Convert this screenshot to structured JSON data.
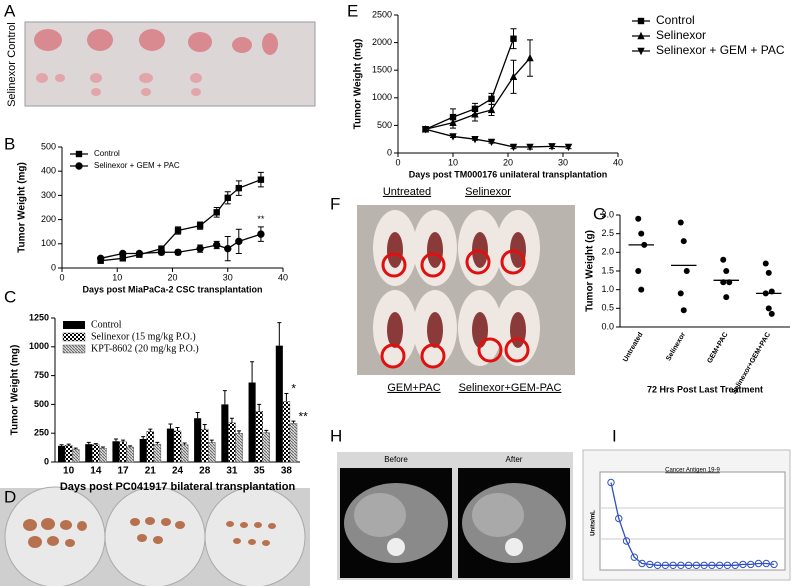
{
  "panel_letters": [
    "A",
    "B",
    "C",
    "D",
    "E",
    "F",
    "G",
    "H",
    "I"
  ],
  "photo_labels": {
    "A": [
      "Selinexor",
      "Control"
    ],
    "F": [
      "Untreated",
      "Selinexor",
      "GEM+PAC",
      "Selinexor+GEM-PAC"
    ],
    "H": [
      "Before",
      "After"
    ]
  },
  "chart_data": [
    {
      "type": "line",
      "xlabel": "Days post MiaPaCa-2 CSC transplantation",
      "ylabel": "Tumor Weight (mg)",
      "xlim": [
        0,
        40
      ],
      "xticks": [
        0,
        10,
        20,
        30,
        40
      ],
      "ylim": [
        0,
        500
      ],
      "yticks": [
        0,
        100,
        200,
        300,
        400,
        500
      ],
      "legend": "upper left",
      "series": [
        {
          "name": "Control",
          "color": "#000000",
          "marker": "square",
          "x": [
            7,
            11,
            14,
            18,
            21,
            25,
            28,
            30,
            32,
            36
          ],
          "values": [
            30,
            40,
            55,
            80,
            155,
            175,
            230,
            290,
            330,
            365
          ],
          "errors": [
            5,
            5,
            5,
            10,
            15,
            15,
            20,
            25,
            30,
            30
          ]
        },
        {
          "name": "Selinexor + GEM + PAC",
          "color": "#000000",
          "marker": "circle",
          "x": [
            7,
            11,
            14,
            18,
            21,
            25,
            28,
            30,
            32,
            36
          ],
          "values": [
            40,
            60,
            60,
            65,
            65,
            80,
            95,
            80,
            110,
            140
          ],
          "errors": [
            5,
            5,
            5,
            10,
            10,
            15,
            15,
            50,
            50,
            30
          ]
        }
      ],
      "annotations": [
        {
          "text": "**",
          "series": 1,
          "index": 9
        }
      ]
    },
    {
      "type": "bar",
      "xlabel": "Days post PC041917 bilateral transplantation",
      "ylabel": "Tumor Weight (mg)",
      "categories": [
        "10",
        "14",
        "17",
        "21",
        "24",
        "28",
        "31",
        "35",
        "38"
      ],
      "ylim": [
        0,
        1250
      ],
      "yticks": [
        0,
        250,
        500,
        750,
        1000,
        1250
      ],
      "legend": "upper left",
      "series": [
        {
          "name": "Control",
          "color": "#000000",
          "pattern": "solid",
          "values": [
            140,
            155,
            180,
            200,
            290,
            380,
            500,
            690,
            1010
          ],
          "errors": [
            10,
            15,
            20,
            20,
            40,
            50,
            120,
            180,
            200
          ]
        },
        {
          "name": "Selinexor (15 mg/kg P.O.)",
          "color": "#000000",
          "pattern": "checker",
          "values": [
            145,
            150,
            175,
            265,
            270,
            285,
            340,
            440,
            525
          ],
          "errors": [
            10,
            10,
            15,
            20,
            30,
            40,
            40,
            60,
            70
          ]
        },
        {
          "name": "KPT-8602 (20 mg/kg P.O.)",
          "color": "#777777",
          "pattern": "hatch",
          "values": [
            110,
            120,
            130,
            155,
            150,
            170,
            250,
            255,
            335
          ],
          "errors": [
            10,
            10,
            10,
            15,
            15,
            20,
            20,
            20,
            20
          ]
        }
      ],
      "annotations": [
        {
          "text": "*",
          "series": 1,
          "index": 8
        },
        {
          "text": "**",
          "series": 2,
          "index": 8
        }
      ]
    },
    {
      "type": "line",
      "xlabel": "Days post TM000176 unilateral transplantation",
      "ylabel": "Tumor Weight (mg)",
      "xlim": [
        0,
        40
      ],
      "xticks": [
        0,
        10,
        20,
        30,
        40
      ],
      "ylim": [
        0,
        2500
      ],
      "yticks": [
        0,
        500,
        1000,
        1500,
        2000,
        2500
      ],
      "legend": "right",
      "series": [
        {
          "name": "Control",
          "color": "#000000",
          "marker": "square",
          "x": [
            5,
            10,
            14,
            17,
            21
          ],
          "values": [
            430,
            650,
            800,
            980,
            2070
          ],
          "errors": [
            40,
            150,
            100,
            100,
            180
          ]
        },
        {
          "name": "Selinexor",
          "color": "#000000",
          "marker": "triangle-up",
          "x": [
            5,
            10,
            14,
            17,
            21,
            24
          ],
          "values": [
            430,
            550,
            700,
            780,
            1380,
            1720
          ],
          "errors": [
            40,
            100,
            120,
            100,
            300,
            330
          ]
        },
        {
          "name": "Selinexor + GEM + PAC",
          "color": "#000000",
          "marker": "triangle-down",
          "x": [
            5,
            10,
            14,
            17,
            21,
            24,
            28,
            31
          ],
          "values": [
            430,
            300,
            250,
            200,
            110,
            110,
            120,
            110
          ],
          "errors": [
            30,
            20,
            20,
            20,
            30,
            40,
            40,
            30
          ]
        }
      ]
    },
    {
      "type": "dotplot",
      "xlabel": "72 Hrs Post Last Treatment",
      "ylabel": "Tumor Weight (g)",
      "categories": [
        "Untreated",
        "Selinexor",
        "GEM+PAC",
        "Selinexor+GEM+PAC"
      ],
      "ylim": [
        0,
        3
      ],
      "yticks": [
        {
          "value": 0,
          "label": "0.0"
        },
        0.5,
        {
          "value": 1,
          "label": "1.0"
        },
        1.5,
        {
          "value": 2,
          "label": "2.0"
        },
        2.5,
        {
          "value": 3,
          "label": "3.0"
        }
      ],
      "color": "#000000",
      "points": [
        [
          2.9,
          2.5,
          2.2,
          1.5,
          1.0
        ],
        [
          2.8,
          2.3,
          1.5,
          0.9,
          0.45
        ],
        [
          1.8,
          1.5,
          1.2,
          1.2,
          0.8
        ],
        [
          1.7,
          1.45,
          0.95,
          0.9,
          0.5,
          0.35
        ]
      ],
      "means": [
        2.2,
        1.65,
        1.25,
        0.9
      ]
    },
    {
      "type": "line",
      "title": "Cancer Antigen 19-9",
      "ylabel": "Units/mL",
      "ylim": [
        0,
        100
      ],
      "series": [
        {
          "color": "#3050c0",
          "marker": "circle",
          "values": [
            95,
            55,
            30,
            12,
            5,
            4,
            3,
            3,
            3,
            3,
            3,
            3,
            3,
            3,
            3,
            3,
            3,
            4,
            4,
            5,
            5,
            4
          ]
        }
      ]
    }
  ]
}
